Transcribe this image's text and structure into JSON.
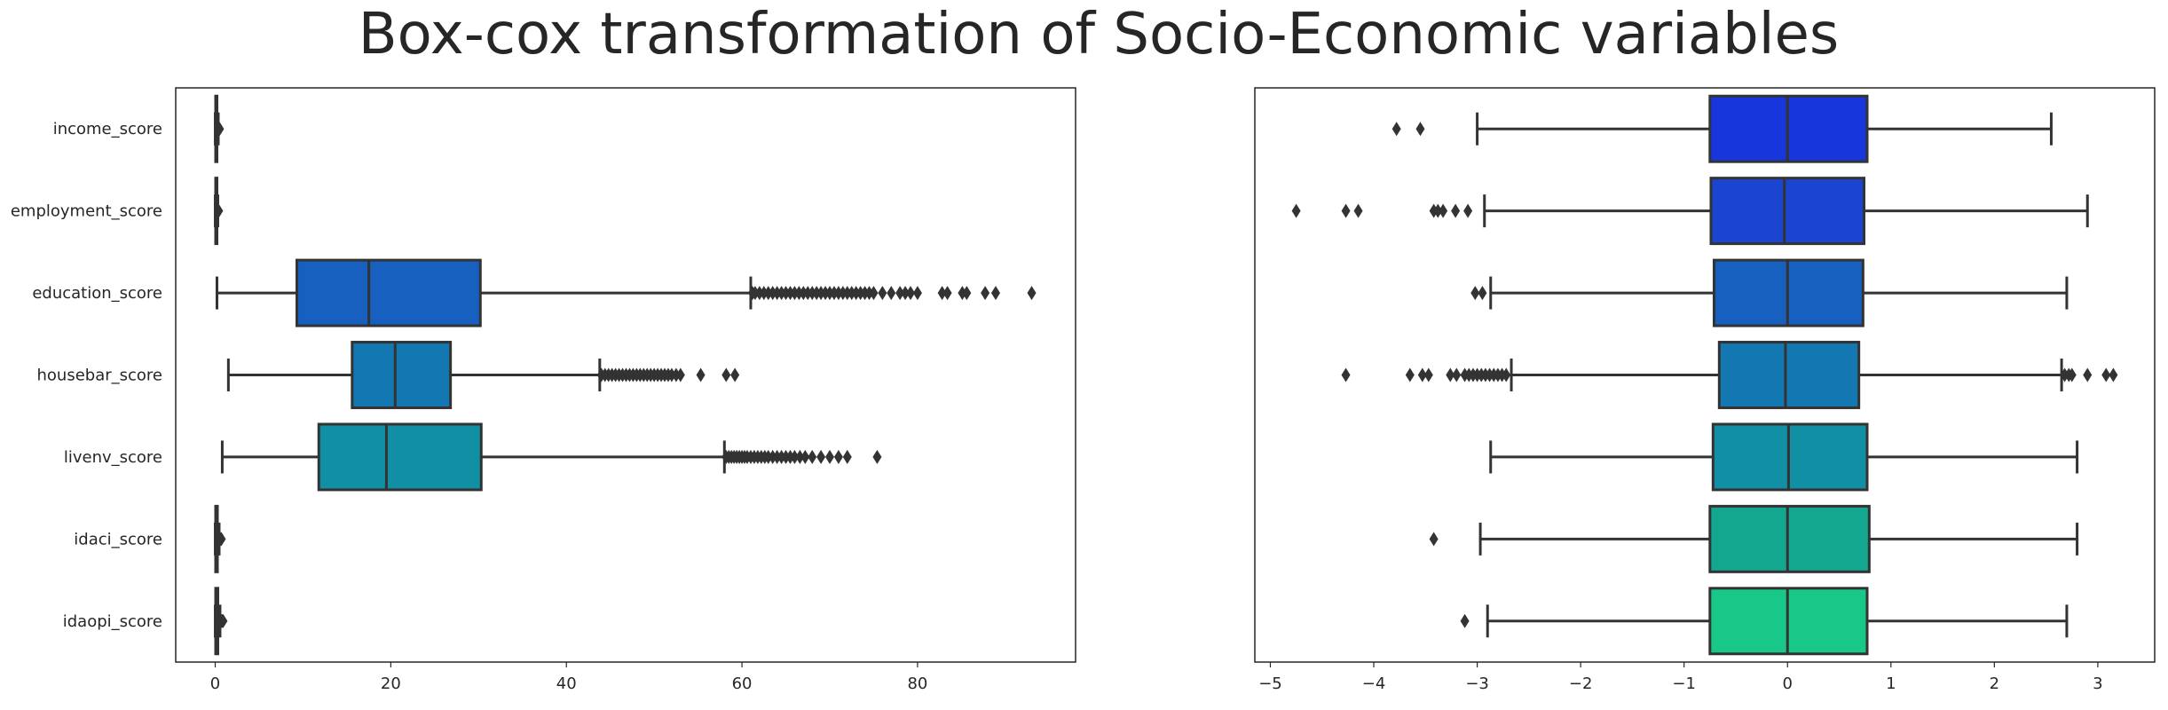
{
  "title": "Box-cox transformation of Socio-Economic variables",
  "chart_data": [
    {
      "type": "boxplot",
      "orientation": "horizontal",
      "categories": [
        "income_score",
        "employment_score",
        "education_score",
        "housebar_score",
        "livenv_score",
        "idaci_score",
        "idaopi_score"
      ],
      "colors": [
        "#1736dc",
        "#1b45d0",
        "#1760c0",
        "#1378b2",
        "#118fa4",
        "#14a790",
        "#18c888"
      ],
      "xlim": [
        -4.5,
        98
      ],
      "xticks": [
        0,
        20,
        40,
        60,
        80
      ],
      "grid": false,
      "boxes": [
        {
          "min": 0.0,
          "q1": 0.05,
          "median": 0.1,
          "q3": 0.2,
          "max": 0.35,
          "outliers": [
            0.4,
            0.45,
            0.5
          ]
        },
        {
          "min": 0.0,
          "q1": 0.05,
          "median": 0.08,
          "q3": 0.15,
          "max": 0.3,
          "outliers": [
            0.35,
            0.4
          ]
        },
        {
          "min": 0.2,
          "q1": 9.3,
          "median": 17.5,
          "q3": 30.2,
          "max": 61.0,
          "outliers": [
            61.2,
            61.5,
            62,
            62.5,
            63,
            63.5,
            64,
            64.5,
            65,
            65.5,
            66,
            66.5,
            67,
            67.5,
            68,
            68.5,
            69,
            69.5,
            70,
            70.5,
            71,
            71.5,
            72,
            72.5,
            73,
            73.5,
            74,
            74.5,
            75,
            76,
            77,
            78,
            78.6,
            79.2,
            80,
            82.8,
            83.4,
            85.1,
            85.6,
            87.7,
            88.9,
            93.0
          ]
        },
        {
          "min": 1.5,
          "q1": 15.6,
          "median": 20.5,
          "q3": 26.8,
          "max": 43.8,
          "outliers": [
            44,
            44.4,
            44.8,
            45.2,
            45.6,
            46,
            46.4,
            46.8,
            47.2,
            47.6,
            48,
            48.4,
            48.8,
            49.2,
            49.6,
            50,
            50.4,
            50.8,
            51.2,
            51.6,
            52,
            52.5,
            53.0,
            55.3,
            58.2,
            59.2
          ]
        },
        {
          "min": 0.8,
          "q1": 11.8,
          "median": 19.5,
          "q3": 30.3,
          "max": 58.0,
          "outliers": [
            58.2,
            58.5,
            58.8,
            59.1,
            59.4,
            59.7,
            60,
            60.3,
            60.6,
            61,
            61.4,
            61.8,
            62.2,
            62.6,
            63,
            63.5,
            64,
            64.5,
            65,
            65.5,
            66,
            66.6,
            67.2,
            68,
            69,
            70,
            71,
            72,
            75.4
          ]
        },
        {
          "min": 0.0,
          "q1": 0.05,
          "median": 0.1,
          "q3": 0.25,
          "max": 0.45,
          "outliers": [
            0.5,
            0.55,
            0.6,
            0.7
          ]
        },
        {
          "min": 0.0,
          "q1": 0.05,
          "median": 0.12,
          "q3": 0.3,
          "max": 0.55,
          "outliers": [
            0.6,
            0.7,
            0.8,
            0.9
          ]
        }
      ]
    },
    {
      "type": "boxplot",
      "orientation": "horizontal",
      "categories": [
        "income_score",
        "employment_score",
        "education_score",
        "housebar_score",
        "livenv_score",
        "idaci_score",
        "idaopi_score"
      ],
      "colors": [
        "#1736dc",
        "#1b45d0",
        "#1760c0",
        "#1378b2",
        "#118fa4",
        "#14a790",
        "#18c888"
      ],
      "xlim": [
        -5.15,
        3.55
      ],
      "xticks": [
        -5,
        -4,
        -3,
        -2,
        -1,
        0,
        1,
        2,
        3
      ],
      "grid": false,
      "boxes": [
        {
          "min": -3.0,
          "q1": -0.75,
          "median": 0.0,
          "q3": 0.77,
          "max": 2.55,
          "outliers": [
            -3.78,
            -3.55
          ]
        },
        {
          "min": -2.93,
          "q1": -0.74,
          "median": -0.03,
          "q3": 0.74,
          "max": 2.9,
          "outliers": [
            -4.75,
            -4.27,
            -4.15,
            -3.42,
            -3.38,
            -3.33,
            -3.21,
            -3.09
          ]
        },
        {
          "min": -2.87,
          "q1": -0.71,
          "median": 0.0,
          "q3": 0.73,
          "max": 2.7,
          "outliers": [
            -3.02,
            -2.95
          ]
        },
        {
          "min": -2.67,
          "q1": -0.66,
          "median": -0.02,
          "q3": 0.69,
          "max": 2.65,
          "outliers": [
            -4.27,
            -3.65,
            -3.53,
            -3.47,
            -3.26,
            -3.2,
            -3.12,
            -3.08,
            -3.04,
            -3.0,
            -2.96,
            -2.92,
            -2.88,
            -2.84,
            -2.8,
            -2.76,
            -2.72,
            2.68,
            2.72,
            2.75,
            2.9,
            3.08,
            3.15
          ]
        },
        {
          "min": -2.87,
          "q1": -0.72,
          "median": 0.01,
          "q3": 0.77,
          "max": 2.8,
          "outliers": []
        },
        {
          "min": -2.97,
          "q1": -0.75,
          "median": 0.0,
          "q3": 0.79,
          "max": 2.8,
          "outliers": [
            -3.42
          ]
        },
        {
          "min": -2.9,
          "q1": -0.75,
          "median": 0.0,
          "q3": 0.77,
          "max": 2.7,
          "outliers": [
            -3.12
          ]
        }
      ]
    }
  ]
}
